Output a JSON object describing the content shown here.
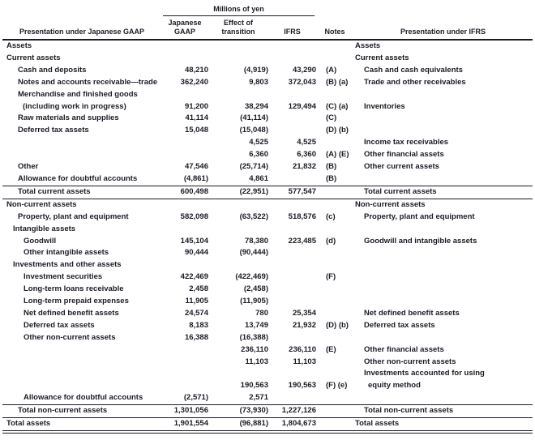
{
  "unit_header": "Millions of yen",
  "columns": {
    "left_header": "Presentation under Japanese GAAP",
    "gaap": "Japanese GAAP",
    "effect": "Effect of transition",
    "ifrs": "IFRS",
    "notes": "Notes",
    "right_header": "Presentation under IFRS"
  },
  "colors": {
    "text": "#1b1b26",
    "rule": "#1b1b26"
  },
  "table": {
    "rows": [
      {
        "t": "sec",
        "l": "Assets",
        "r": "Assets"
      },
      {
        "t": "sec",
        "l": "Current assets",
        "r": "Current assets"
      },
      {
        "t": "item",
        "l": "Cash and deposits",
        "g": "48,210",
        "e": "(4,919)",
        "i": "43,290",
        "n": "(A)",
        "r": "Cash and cash equivalents"
      },
      {
        "t": "item",
        "l": "Notes and accounts receivable—trade",
        "g": "362,240",
        "e": "9,803",
        "i": "372,043",
        "n": "(B) (a)",
        "r": "Trade and other receivables"
      },
      {
        "t": "item2",
        "l": "Merchandise and finished goods",
        "l2": "(including work in progress)",
        "g": "91,200",
        "e": "38,294",
        "i": "129,494",
        "n": "(C) (a)",
        "r": "Inventories"
      },
      {
        "t": "item",
        "l": "Raw materials and supplies",
        "g": "41,114",
        "e": "(41,114)",
        "n": "(C)"
      },
      {
        "t": "item",
        "l": "Deferred tax assets",
        "g": "15,048",
        "e": "(15,048)",
        "n": "(D) (b)"
      },
      {
        "t": "item",
        "e": "4,525",
        "i": "4,525",
        "r": "Income tax receivables"
      },
      {
        "t": "item",
        "e": "6,360",
        "i": "6,360",
        "n": "(A) (E)",
        "r": "Other financial assets"
      },
      {
        "t": "item",
        "l": "Other",
        "g": "47,546",
        "e": "(25,714)",
        "i": "21,832",
        "n": "(B)",
        "r": "Other current assets"
      },
      {
        "t": "item",
        "l": "Allowance for doubtful accounts",
        "g": "(4,861)",
        "e": "4,861",
        "n": "(B)"
      },
      {
        "t": "total",
        "l": "Total current assets",
        "g": "600,498",
        "e": "(22,951)",
        "i": "577,547",
        "r": "Total current assets"
      },
      {
        "t": "sec",
        "l": "Non-current assets",
        "r": "Non-current assets"
      },
      {
        "t": "item",
        "l": "Property, plant and equipment",
        "g": "582,098",
        "e": "(63,522)",
        "i": "518,576",
        "n": "(c)",
        "r": "Property, plant and equipment"
      },
      {
        "t": "sub",
        "l": "Intangible assets"
      },
      {
        "t": "item3",
        "l": "Goodwill",
        "g": "145,104",
        "e": "78,380",
        "i": "223,485",
        "n": "(d)",
        "r": "Goodwill and intangible assets"
      },
      {
        "t": "item3",
        "l": "Other intangible assets",
        "g": "90,444",
        "e": "(90,444)"
      },
      {
        "t": "sub",
        "l": "Investments and other assets"
      },
      {
        "t": "item3",
        "l": "Investment securities",
        "g": "422,469",
        "e": "(422,469)",
        "n": "(F)"
      },
      {
        "t": "item3",
        "l": "Long-term loans receivable",
        "g": "2,458",
        "e": "(2,458)"
      },
      {
        "t": "item3",
        "l": "Long-term prepaid expenses",
        "g": "11,905",
        "e": "(11,905)"
      },
      {
        "t": "item3",
        "l": "Net defined benefit assets",
        "g": "24,574",
        "e": "780",
        "i": "25,354",
        "r": "Net defined benefit assets"
      },
      {
        "t": "item3",
        "l": "Deferred tax assets",
        "g": "8,183",
        "e": "13,749",
        "i": "21,932",
        "n": "(D) (b)",
        "r": "Deferred tax assets"
      },
      {
        "t": "item3",
        "l": "Other non-current assets",
        "g": "16,388",
        "e": "(16,388)"
      },
      {
        "t": "item",
        "e": "236,110",
        "i": "236,110",
        "n": "(E)",
        "r": "Other financial assets"
      },
      {
        "t": "item",
        "e": "11,103",
        "i": "11,103",
        "r": "Other non-current assets"
      },
      {
        "t": "item2",
        "e": "190,563",
        "i": "190,563",
        "n": "(F) (e)",
        "r": "Investments accounted for using",
        "r2": "equity method"
      },
      {
        "t": "item3",
        "l": "Allowance for doubtful accounts",
        "g": "(2,571)",
        "e": "2,571"
      },
      {
        "t": "total",
        "l": "Total non-current assets",
        "g": "1,301,056",
        "e": "(73,930)",
        "i": "1,227,126",
        "r": "Total non-current assets"
      },
      {
        "t": "grand",
        "l": "Total assets",
        "g": "1,901,554",
        "e": "(96,881)",
        "i": "1,804,673",
        "r": "Total assets"
      }
    ]
  }
}
